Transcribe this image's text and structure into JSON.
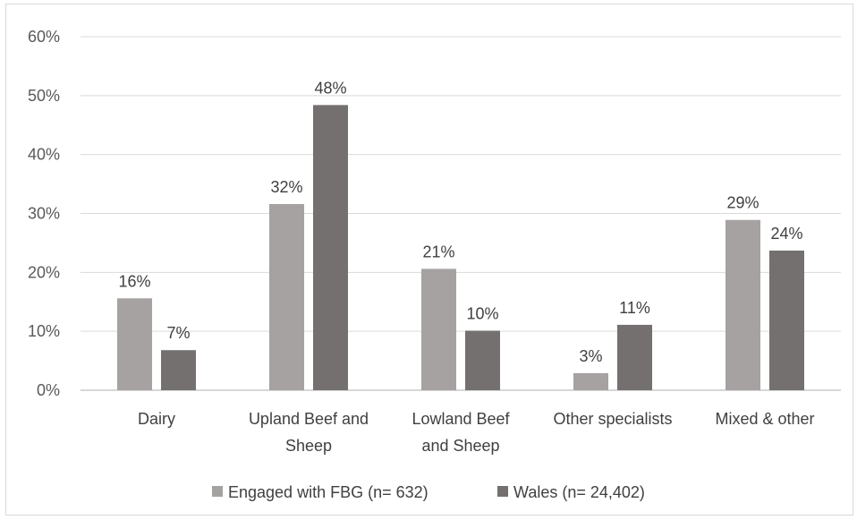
{
  "chart_data": {
    "type": "bar",
    "categories": [
      [
        "Dairy"
      ],
      [
        "Upland Beef and",
        "Sheep"
      ],
      [
        "Lowland Beef",
        "and Sheep"
      ],
      [
        "Other specialists"
      ],
      [
        "Mixed & other"
      ]
    ],
    "series": [
      {
        "name": "Engaged with FBG (n= 632)",
        "color": "#a5a2a1",
        "values": [
          15.6,
          31.6,
          20.6,
          2.9,
          28.9
        ],
        "labels": [
          "16%",
          "32%",
          "21%",
          "3%",
          "29%"
        ]
      },
      {
        "name": "Wales (n= 24,402)",
        "color": "#747070",
        "values": [
          6.8,
          48.4,
          10.1,
          11.1,
          23.7
        ],
        "labels": [
          "7%",
          "48%",
          "10%",
          "11%",
          "24%"
        ]
      }
    ],
    "ylim": [
      0,
      60
    ],
    "yticks": [
      0,
      10,
      20,
      30,
      40,
      50,
      60
    ],
    "ytick_labels": [
      "0%",
      "10%",
      "20%",
      "30%",
      "40%",
      "50%",
      "60%"
    ],
    "grid": true,
    "legend_position": "bottom",
    "title": "",
    "xlabel": "",
    "ylabel": ""
  }
}
